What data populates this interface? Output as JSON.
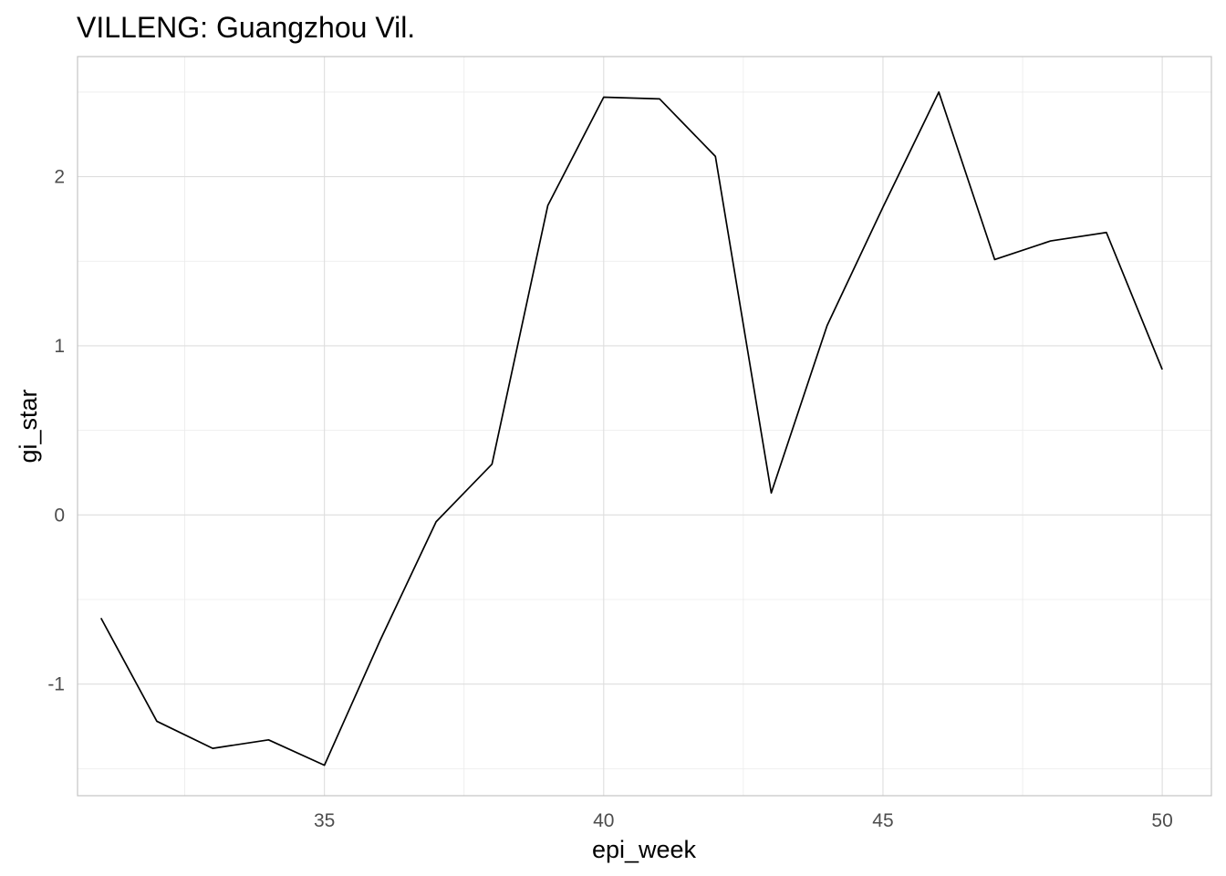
{
  "chart_data": {
    "type": "line",
    "title": "VILLENG: Guangzhou Vil.",
    "xlabel": "epi_week",
    "ylabel": "gi_star",
    "xlim": [
      30.58,
      50.88
    ],
    "ylim": [
      -1.66,
      2.71
    ],
    "x_ticks": [
      35,
      40,
      45,
      50
    ],
    "x_tick_labels": [
      "35",
      "40",
      "45",
      "50"
    ],
    "y_ticks": [
      -1,
      0,
      1,
      2
    ],
    "y_tick_labels": [
      "-1",
      "0",
      "1",
      "2"
    ],
    "grid": true,
    "legend": "none",
    "line_color": "#000000",
    "series": [
      {
        "x": [
          31,
          32,
          33,
          34,
          35,
          36,
          37,
          38,
          39,
          40,
          41,
          42,
          43,
          44,
          45,
          46,
          47,
          48,
          49,
          50
        ],
        "values": [
          -0.61,
          -1.22,
          -1.38,
          -1.33,
          -1.48,
          -0.74,
          -0.04,
          0.3,
          1.83,
          2.47,
          2.46,
          2.12,
          0.13,
          1.12,
          1.82,
          2.5,
          1.51,
          1.62,
          1.67,
          0.86
        ]
      }
    ]
  }
}
